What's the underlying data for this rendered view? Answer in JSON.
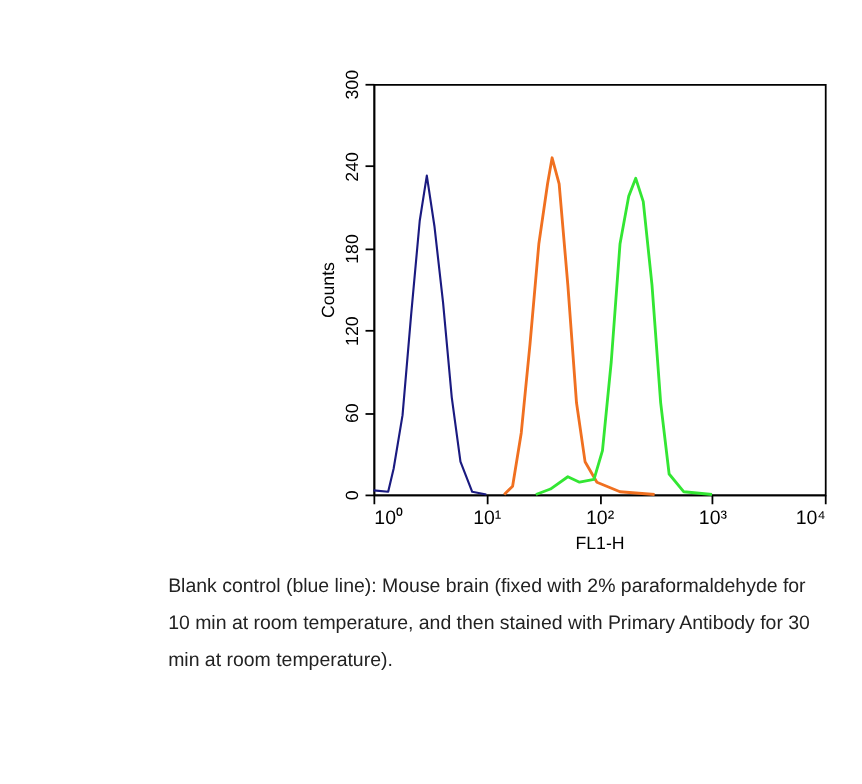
{
  "chart_data": {
    "type": "line",
    "xlabel": "FL1-H",
    "ylabel": "Counts",
    "log": "x",
    "xlim": [
      1,
      10000
    ],
    "ylim": [
      0,
      300
    ],
    "xticks": [
      {
        "value": 1,
        "label": "10⁰"
      },
      {
        "value": 10,
        "label": "10¹"
      },
      {
        "value": 100,
        "label": "10²"
      },
      {
        "value": 1000,
        "label": "10³"
      },
      {
        "value": 10000,
        "label": "10⁴"
      }
    ],
    "yticks": [
      0,
      60,
      120,
      180,
      240,
      300
    ],
    "grid": false,
    "series": [
      {
        "color": "#1a1a80",
        "x": [
          1.0,
          1.35,
          1.51,
          1.81,
          2.16,
          2.57,
          2.97,
          3.47,
          4.14,
          4.94,
          5.9,
          7.5,
          10
        ],
        "values": [
          3,
          2,
          19,
          58,
          132,
          200,
          233,
          196,
          140,
          71,
          24,
          2,
          0
        ]
      },
      {
        "color": "#f07020",
        "x": [
          14.4,
          17.1,
          20.4,
          24.4,
          29.2,
          34.9,
          38.3,
          44.2,
          52.8,
          63,
          75,
          95.5,
          153,
          310
        ],
        "values": [
          0,
          6,
          45,
          110,
          183,
          227,
          246,
          227,
          153,
          67,
          24,
          9,
          2,
          0
        ]
      },
      {
        "color": "#33e633",
        "x": [
          27.5,
          37,
          52.8,
          67,
          90,
          107,
          128,
          153,
          183,
          211,
          246,
          294,
          351,
          417,
          563,
          1000
        ],
        "values": [
          0,
          4,
          13,
          9,
          11,
          32,
          97,
          183,
          218,
          231,
          214,
          153,
          67,
          15,
          2,
          0
        ]
      }
    ],
    "annotations": [
      "Blank control (blue line): Mouse brain (fixed with 2% paraformaldehyde for 10 min at room temperature, and then stained with Primary Antibody for 30 min at room temperature)."
    ]
  }
}
